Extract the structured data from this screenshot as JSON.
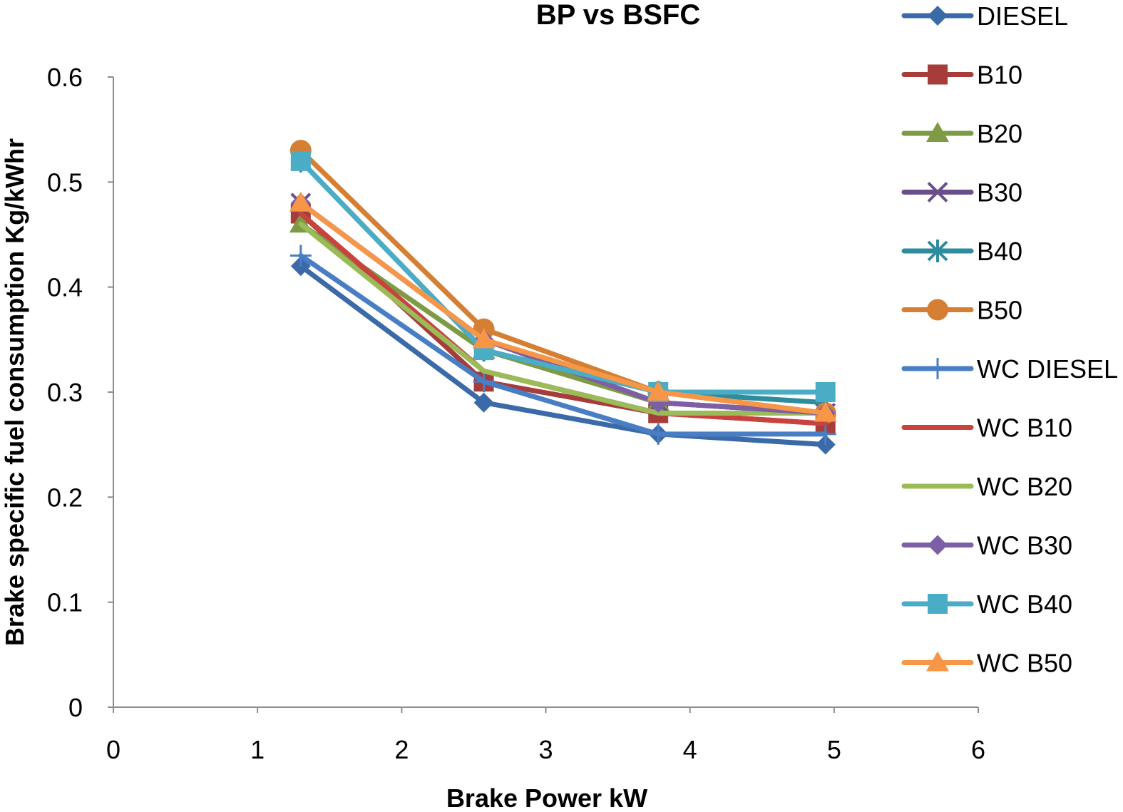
{
  "chart_data": {
    "type": "line",
    "title": "BP vs BSFC",
    "xlabel": "Brake Power kW",
    "ylabel": "Brake specific fuel consumption Kg/kWhr",
    "xlim": [
      0,
      6
    ],
    "ylim": [
      0,
      0.6
    ],
    "x_ticks": [
      "0",
      "1",
      "2",
      "3",
      "4",
      "5",
      "6"
    ],
    "y_ticks": [
      "0",
      "0.1",
      "0.2",
      "0.3",
      "0.4",
      "0.5",
      "0.6"
    ],
    "grid": false,
    "legend_position": "right",
    "x": [
      1.3,
      2.57,
      3.78,
      4.94
    ],
    "series": [
      {
        "name": "DIESEL",
        "values": [
          0.42,
          0.29,
          0.26,
          0.25
        ],
        "color": "#3A6AA8",
        "marker": "diamond"
      },
      {
        "name": "B10",
        "values": [
          0.47,
          0.31,
          0.28,
          0.27
        ],
        "color": "#A63D3A",
        "marker": "square"
      },
      {
        "name": "B20",
        "values": [
          0.46,
          0.34,
          0.29,
          0.28
        ],
        "color": "#7F9A45",
        "marker": "triangle"
      },
      {
        "name": "B30",
        "values": [
          0.48,
          0.35,
          0.29,
          0.28
        ],
        "color": "#6A4E8C",
        "marker": "x"
      },
      {
        "name": "B40",
        "values": [
          0.52,
          0.34,
          0.3,
          0.29
        ],
        "color": "#2F8C9E",
        "marker": "star"
      },
      {
        "name": "B50",
        "values": [
          0.53,
          0.36,
          0.3,
          0.28
        ],
        "color": "#D47F34",
        "marker": "circle"
      },
      {
        "name": "WC DIESEL",
        "values": [
          0.43,
          0.31,
          0.26,
          0.26
        ],
        "color": "#4A7EC4",
        "marker": "plus"
      },
      {
        "name": "WC B10",
        "values": [
          0.47,
          0.32,
          0.28,
          0.27
        ],
        "color": "#C9423E",
        "marker": "none"
      },
      {
        "name": "WC B20",
        "values": [
          0.46,
          0.32,
          0.28,
          0.28
        ],
        "color": "#9BBB59",
        "marker": "none"
      },
      {
        "name": "WC B30",
        "values": [
          0.48,
          0.35,
          0.29,
          0.28
        ],
        "color": "#7D5FA6",
        "marker": "diamond"
      },
      {
        "name": "WC B40",
        "values": [
          0.52,
          0.34,
          0.3,
          0.3
        ],
        "color": "#4BACC6",
        "marker": "square"
      },
      {
        "name": "WC B50",
        "values": [
          0.48,
          0.35,
          0.3,
          0.28
        ],
        "color": "#F79646",
        "marker": "triangle"
      }
    ]
  }
}
